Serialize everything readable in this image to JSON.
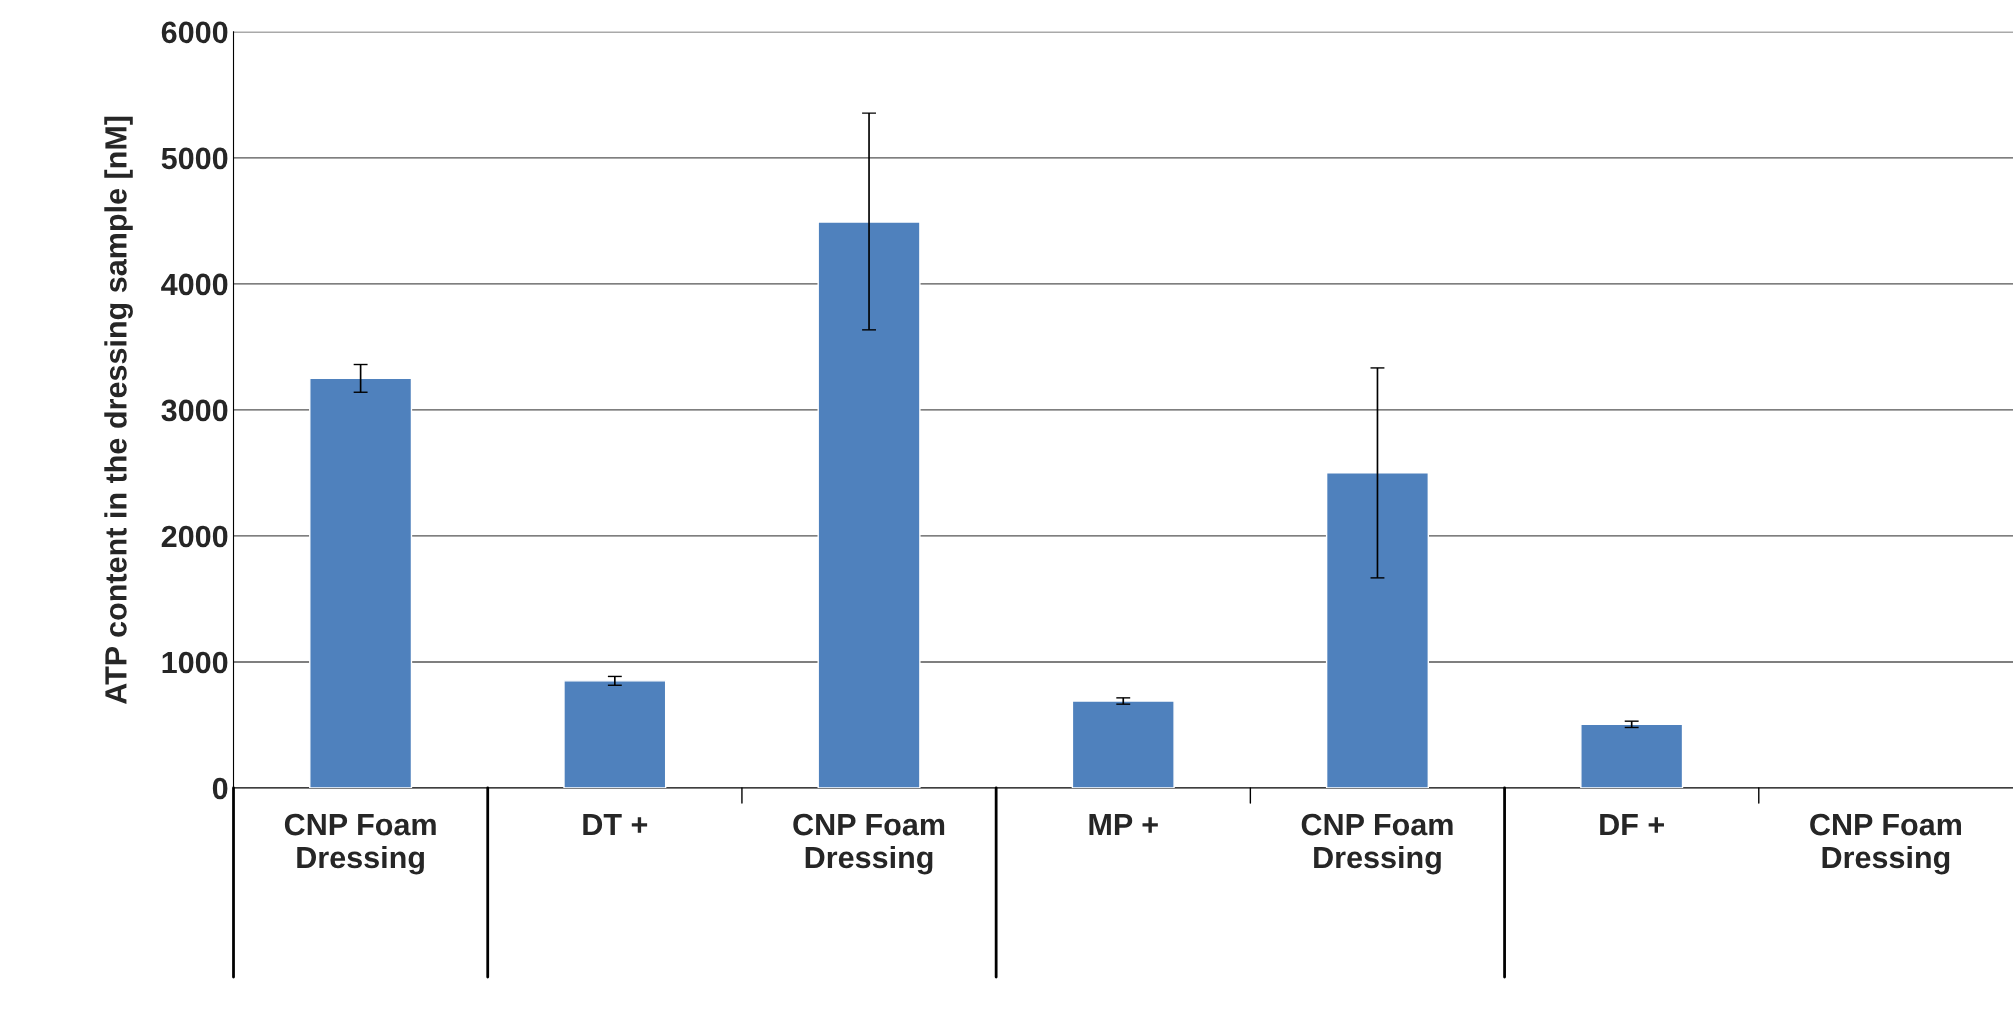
{
  "chart_data": {
    "type": "bar",
    "ylabel": "ATP content in the dressing sample [nM]",
    "categories": [
      "CNP Foam\nDressing",
      "DT +",
      "CNP Foam\nDressing",
      "MP +",
      "CNP Foam\nDressing",
      "DF +",
      "CNP Foam\nDressing"
    ],
    "values": [
      3250,
      850,
      4490,
      690,
      2500,
      505,
      null
    ],
    "errors": [
      [
        3140,
        3360
      ],
      [
        815,
        885
      ],
      [
        3635,
        5355
      ],
      [
        665,
        715
      ],
      [
        1667,
        3333
      ],
      [
        480,
        530
      ],
      null
    ],
    "color": "#4f81bd",
    "ylim": [
      0,
      6000
    ],
    "yticks": [
      0,
      1000,
      2000,
      3000,
      4000,
      5000,
      6000
    ],
    "grid": "y"
  }
}
